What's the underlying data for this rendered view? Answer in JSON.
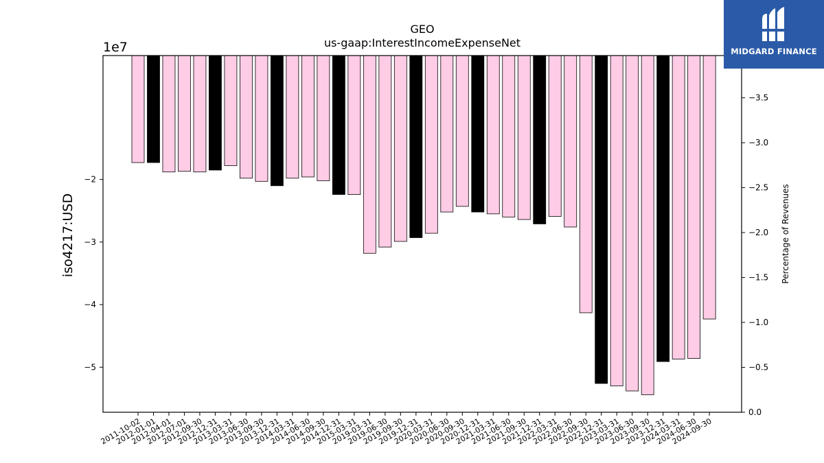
{
  "chart_data": {
    "type": "bar",
    "title": "GEO",
    "subtitle": "us-gaap:InterestIncomeExpenseNet",
    "ylabel": "iso4217:USD",
    "y2label": "Percentage of Revenues",
    "y_offset_label": "1e7",
    "ylim": [
      -5.72,
      -0.02
    ],
    "y_ticks": [
      -5,
      -4,
      -3,
      -2
    ],
    "y_tick_labels": [
      "−5",
      "−4",
      "−3",
      "−2"
    ],
    "y2lim": [
      0.0,
      3.97
    ],
    "y2_ticks": [
      0.0,
      0.5,
      1.0,
      1.5,
      2.0,
      2.5,
      3.0,
      3.5
    ],
    "y2_tick_labels": [
      "0.0",
      "−0.5",
      "−1.0",
      "−1.5",
      "−2.0",
      "−2.5",
      "−3.0",
      "−3.5"
    ],
    "categories": [
      "2011-10-02",
      "2012-01-01",
      "2012-04-01",
      "2012-07-01",
      "2012-09-30",
      "2012-12-31",
      "2013-03-31",
      "2013-06-30",
      "2013-09-30",
      "2013-12-31",
      "2014-03-31",
      "2014-06-30",
      "2014-09-30",
      "2014-12-31",
      "2015-03-31",
      "2019-03-31",
      "2019-06-30",
      "2019-09-30",
      "2019-12-31",
      "2020-03-31",
      "2020-06-30",
      "2020-09-30",
      "2020-12-31",
      "2021-03-31",
      "2021-06-30",
      "2021-09-30",
      "2021-12-31",
      "2022-03-31",
      "2022-06-30",
      "2022-09-30",
      "2022-12-31",
      "2023-03-31",
      "2023-06-30",
      "2023-09-30",
      "2023-12-31",
      "2024-03-31",
      "2024-06-30",
      "2024-09-30"
    ],
    "values": [
      -1.73,
      -1.73,
      -1.88,
      -1.87,
      -1.88,
      -1.85,
      -1.78,
      -1.98,
      -2.03,
      -2.1,
      -1.98,
      -1.96,
      -2.02,
      -2.24,
      -2.24,
      -3.18,
      -3.08,
      -2.99,
      -2.93,
      -2.86,
      -2.52,
      -2.43,
      -2.52,
      -2.55,
      -2.6,
      -2.64,
      -2.71,
      -2.59,
      -2.76,
      -4.13,
      -5.26,
      -5.3,
      -5.38,
      -5.44,
      -4.91,
      -4.87,
      -4.86,
      -4.23
    ],
    "colors": [
      "pink",
      "black",
      "pink",
      "pink",
      "pink",
      "black",
      "pink",
      "pink",
      "pink",
      "black",
      "pink",
      "pink",
      "pink",
      "black",
      "pink",
      "pink",
      "pink",
      "pink",
      "black",
      "pink",
      "pink",
      "pink",
      "black",
      "pink",
      "pink",
      "pink",
      "black",
      "pink",
      "pink",
      "pink",
      "black",
      "pink",
      "pink",
      "pink",
      "black",
      "pink",
      "pink",
      "pink"
    ],
    "bar_colors": {
      "pink": "#ffcce6",
      "black": "#000000"
    },
    "bar_edge_color": "#000000"
  },
  "logo": {
    "text": "MIDGARD FINANCE",
    "background": "#2b5ba8",
    "icon": "midgard-logo-icon"
  }
}
